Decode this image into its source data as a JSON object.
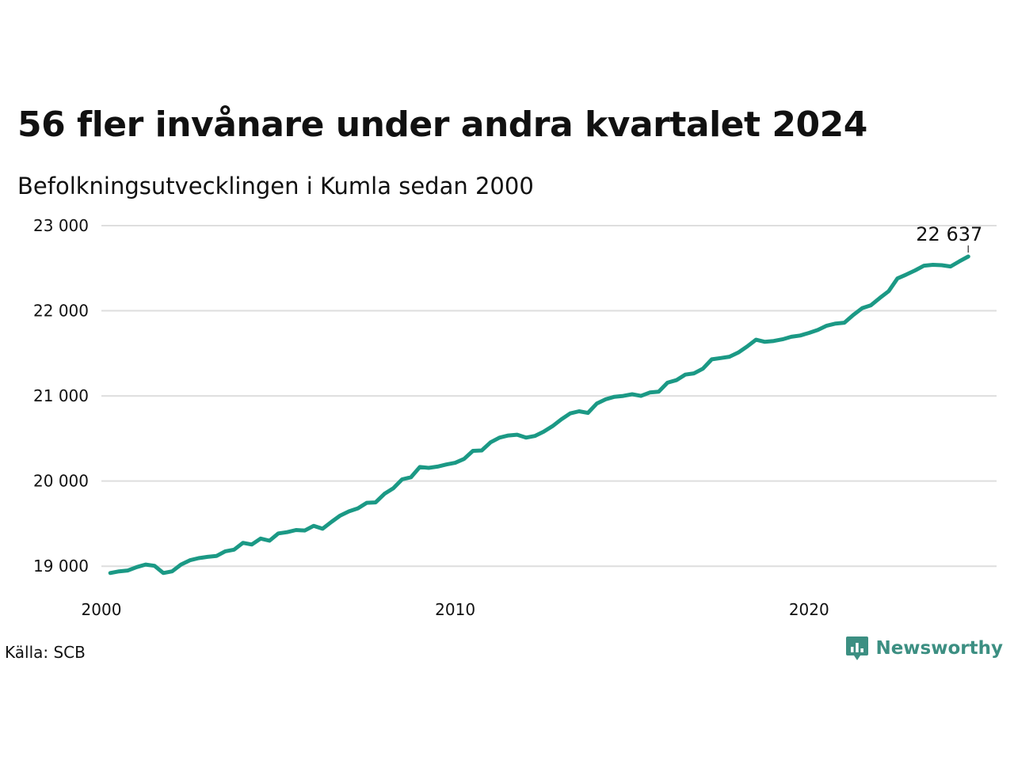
{
  "title": "56 fler invånare under andra kvartalet 2024",
  "subtitle": "Befolkningsutvecklingen i Kumla sedan 2000",
  "source": "Källa: SCB",
  "brand": {
    "name": "Newsworthy",
    "icon": "newsworthy-logo-icon",
    "color": "#3c8f82"
  },
  "colors": {
    "line": "#1b9985",
    "grid": "#dedede",
    "text": "#111111"
  },
  "chart_data": {
    "type": "line",
    "title": "56 fler invånare under andra kvartalet 2024",
    "subtitle": "Befolkningsutvecklingen i Kumla sedan 2000",
    "xlabel": "",
    "ylabel": "",
    "x_unit": "year (quarterly data, 2000 Q1 – 2024 Q2)",
    "ylim": [
      18900,
      23000
    ],
    "xlim": [
      2000,
      2025.3
    ],
    "x_ticks": [
      {
        "value": 2000,
        "label": "2000"
      },
      {
        "value": 2010,
        "label": "2010"
      },
      {
        "value": 2020,
        "label": "2020"
      }
    ],
    "y_ticks": [
      {
        "value": 19000,
        "label": "19 000"
      },
      {
        "value": 20000,
        "label": "20 000"
      },
      {
        "value": 21000,
        "label": "21 000"
      },
      {
        "value": 22000,
        "label": "22 000"
      },
      {
        "value": 23000,
        "label": "23 000"
      }
    ],
    "grid": "horizontal",
    "end_label": "22 637",
    "series": [
      {
        "x": [
          2000.25,
          2000.5,
          2000.75,
          2001.0,
          2001.25,
          2001.5,
          2001.75,
          2002.0,
          2002.25,
          2002.5,
          2002.75,
          2003.0,
          2003.25,
          2003.5,
          2003.75,
          2004.0,
          2004.25,
          2004.5,
          2004.75,
          2005.0,
          2005.25,
          2005.5,
          2005.75,
          2006.0,
          2006.25,
          2006.5,
          2006.75,
          2007.0,
          2007.25,
          2007.5,
          2007.75,
          2008.0,
          2008.25,
          2008.5,
          2008.75,
          2009.0,
          2009.25,
          2009.5,
          2009.75,
          2010.0,
          2010.25,
          2010.5,
          2010.75,
          2011.0,
          2011.25,
          2011.5,
          2011.75,
          2012.0,
          2012.25,
          2012.5,
          2012.75,
          2013.0,
          2013.25,
          2013.5,
          2013.75,
          2014.0,
          2014.25,
          2014.5,
          2014.75,
          2015.0,
          2015.25,
          2015.5,
          2015.75,
          2016.0,
          2016.25,
          2016.5,
          2016.75,
          2017.0,
          2017.25,
          2017.5,
          2017.75,
          2018.0,
          2018.25,
          2018.5,
          2018.75,
          2019.0,
          2019.25,
          2019.5,
          2019.75,
          2020.0,
          2020.25,
          2020.5,
          2020.75,
          2021.0,
          2021.25,
          2021.5,
          2021.75,
          2022.0,
          2022.25,
          2022.5,
          2022.75,
          2023.0,
          2023.25,
          2023.5,
          2023.75,
          2024.0,
          2024.25,
          2024.5
        ],
        "values": [
          18920,
          18940,
          18950,
          18990,
          19020,
          19005,
          18920,
          18940,
          19020,
          19070,
          19095,
          19110,
          19120,
          19175,
          19195,
          19275,
          19255,
          19325,
          19300,
          19385,
          19400,
          19425,
          19420,
          19475,
          19440,
          19520,
          19595,
          19645,
          19680,
          19745,
          19750,
          19850,
          19915,
          20020,
          20045,
          20165,
          20155,
          20170,
          20195,
          20215,
          20260,
          20355,
          20360,
          20455,
          20510,
          20535,
          20545,
          20510,
          20530,
          20580,
          20645,
          20725,
          20795,
          20820,
          20800,
          20910,
          20960,
          20990,
          21000,
          21020,
          21000,
          21040,
          21050,
          21155,
          21185,
          21250,
          21265,
          21320,
          21430,
          21445,
          21460,
          21510,
          21580,
          21660,
          21635,
          21645,
          21665,
          21695,
          21710,
          21740,
          21775,
          21825,
          21850,
          21860,
          21950,
          22030,
          22065,
          22150,
          22230,
          22380,
          22425,
          22475,
          22530,
          22540,
          22535,
          22520,
          22581,
          22637
        ]
      }
    ]
  }
}
